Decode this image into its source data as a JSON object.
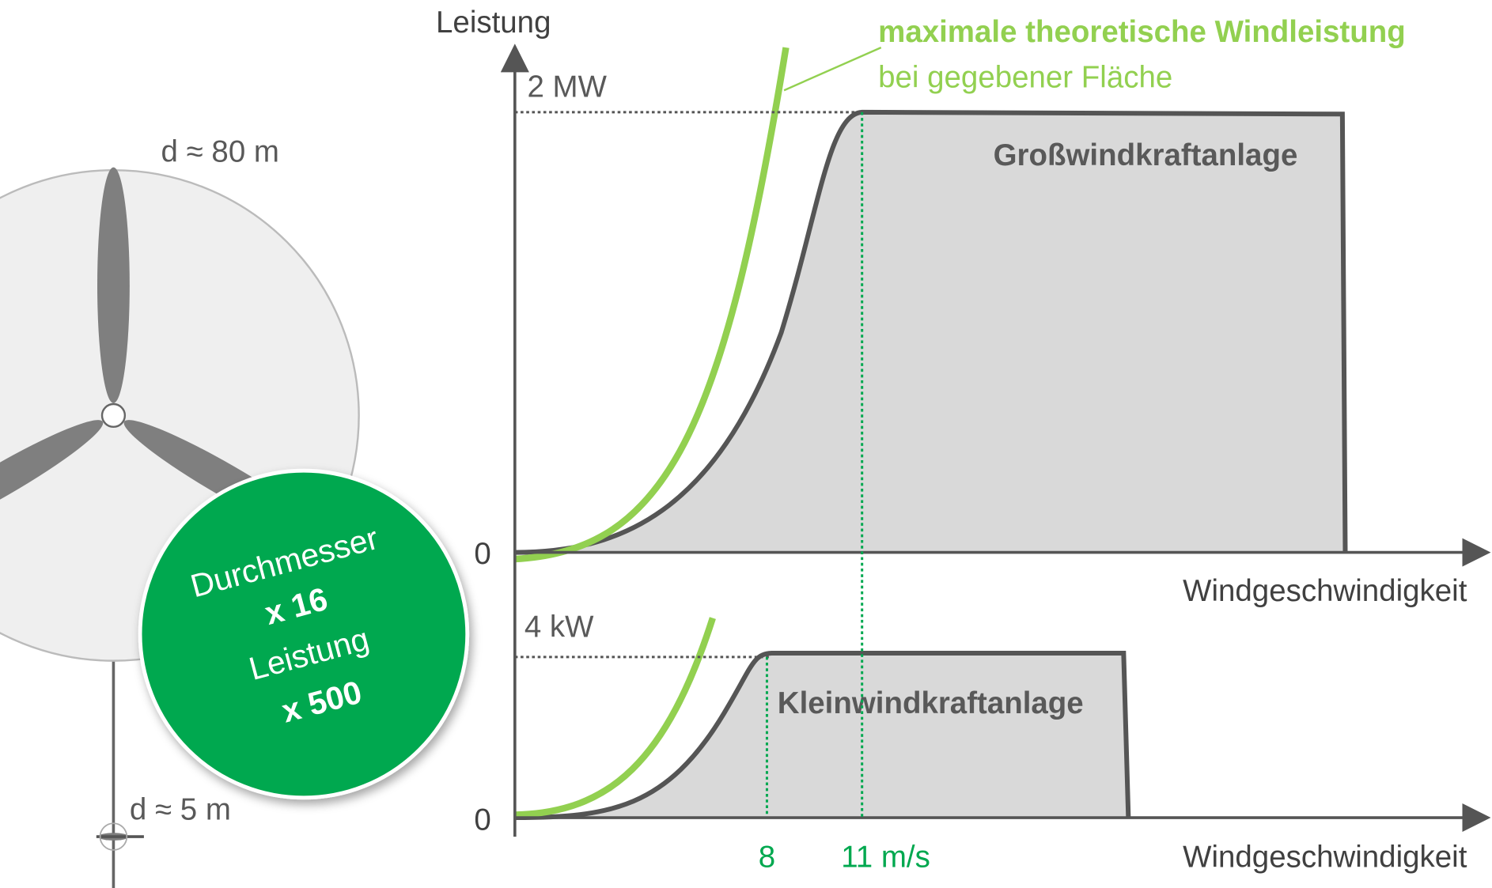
{
  "top_chart": {
    "y_axis_label": "Leistung",
    "y_max_label": "2 MW",
    "y_zero_label": "0",
    "x_axis_label": "Windgeschwindigkeit",
    "area_label": "Großwindkraftanlage",
    "theory_title": "maximale theoretische Windleistung",
    "theory_subtitle": "bei gegebener Fläche"
  },
  "bottom_chart": {
    "y_max_label": "4 kW",
    "y_zero_label": "0",
    "x_axis_label": "Windgeschwindigkeit",
    "area_label": "Kleinwindkraftanlage",
    "x_tick_rated_small": "8",
    "x_tick_rated_large": "11 m/s"
  },
  "rotors": {
    "large_diameter": "d ≈ 80 m",
    "small_diameter": "d ≈ 5 m"
  },
  "badge": {
    "line1": "Durchmesser",
    "line2": "x 16",
    "line3": "Leistung",
    "line4": "x 500"
  }
}
